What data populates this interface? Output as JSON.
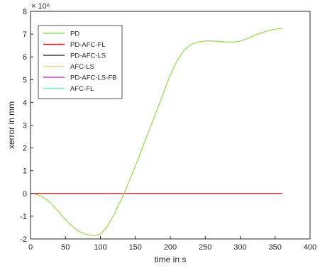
{
  "chart_data": {
    "type": "line",
    "title": "",
    "xlabel": "time in s",
    "ylabel": "xerror in mm",
    "exponent_label": "× 10⁶",
    "xlim": [
      0,
      400
    ],
    "ylim": [
      -2,
      8
    ],
    "x_ticks": [
      0,
      50,
      100,
      150,
      200,
      250,
      300,
      350,
      400
    ],
    "y_ticks": [
      -2,
      -1,
      0,
      1,
      2,
      3,
      4,
      5,
      6,
      7,
      8
    ],
    "grid": false,
    "legend_position": "top-left",
    "series": [
      {
        "name": "PD",
        "color": "#91e05a",
        "x": [
          0,
          10,
          20,
          30,
          40,
          50,
          60,
          70,
          80,
          90,
          100,
          110,
          120,
          130,
          140,
          150,
          160,
          170,
          180,
          190,
          200,
          210,
          220,
          230,
          240,
          250,
          260,
          270,
          280,
          290,
          300,
          310,
          320,
          330,
          340,
          350,
          360
        ],
        "values": [
          0,
          -0.05,
          -0.2,
          -0.45,
          -0.8,
          -1.15,
          -1.45,
          -1.68,
          -1.8,
          -1.85,
          -1.8,
          -1.45,
          -0.9,
          -0.25,
          0.45,
          1.2,
          2.0,
          2.8,
          3.6,
          4.4,
          5.2,
          5.85,
          6.3,
          6.55,
          6.65,
          6.7,
          6.7,
          6.68,
          6.65,
          6.65,
          6.7,
          6.8,
          6.95,
          7.05,
          7.15,
          7.22,
          7.25
        ]
      },
      {
        "name": "PD-AFC-FL",
        "color": "#e02020",
        "x": [
          0,
          360
        ],
        "values": [
          0,
          0
        ]
      },
      {
        "name": "PD-AFC-LS",
        "color": "#404040",
        "x": [
          0,
          360
        ],
        "values": [
          0,
          0
        ]
      },
      {
        "name": "AFC-LS",
        "color": "#e8e05a",
        "x": [
          0,
          10,
          20,
          30,
          40,
          50,
          60,
          70,
          80,
          90,
          100,
          110,
          120,
          130,
          140,
          150,
          160,
          170,
          180,
          190,
          200,
          210,
          220,
          230,
          240,
          250,
          260,
          270,
          280,
          290,
          300,
          310,
          320,
          330,
          340,
          350,
          360
        ],
        "values": [
          0,
          -0.05,
          -0.2,
          -0.45,
          -0.8,
          -1.15,
          -1.45,
          -1.68,
          -1.8,
          -1.85,
          -1.8,
          -1.45,
          -0.9,
          -0.25,
          0.45,
          1.2,
          2.0,
          2.8,
          3.6,
          4.4,
          5.2,
          5.85,
          6.3,
          6.55,
          6.65,
          6.7,
          6.7,
          6.68,
          6.65,
          6.65,
          6.7,
          6.8,
          6.95,
          7.05,
          7.15,
          7.22,
          7.25
        ]
      },
      {
        "name": "PD-AFC-LS-FB",
        "color": "#c040c0",
        "x": [
          0,
          360
        ],
        "values": [
          0,
          0
        ]
      },
      {
        "name": "AFC-FL",
        "color": "#7ee0d8",
        "x": [
          0,
          360
        ],
        "values": [
          0,
          0
        ]
      }
    ]
  }
}
